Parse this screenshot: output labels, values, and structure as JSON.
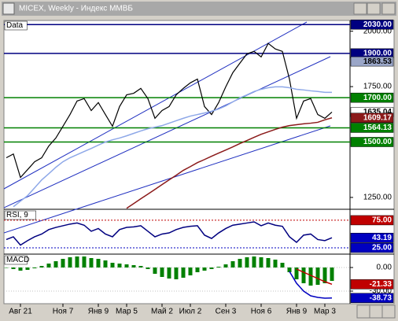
{
  "window": {
    "title": "MICEX, Weekly - Индекс ММВБ"
  },
  "chart_data": [
    {
      "type": "line",
      "title": "Data",
      "categories": [
        null,
        null,
        "Авг 21",
        null,
        null,
        null,
        null,
        null,
        "Ноя 7",
        null,
        null,
        null,
        null,
        "Янв 9",
        null,
        null,
        null,
        "Мар 5",
        null,
        null,
        null,
        null,
        "Май 2",
        null,
        null,
        null,
        "Июл 2",
        null,
        null,
        null,
        null,
        "Сен 3",
        null,
        null,
        null,
        null,
        "Ноя 6",
        null,
        null,
        null,
        null,
        "Янв 9",
        null,
        null,
        null,
        "Мар 3",
        null
      ],
      "series": [
        {
          "color": "#000000",
          "values": [
            1429,
            1446,
            1340,
            1375,
            1411,
            1429,
            1482,
            1518,
            1571,
            1624,
            1685,
            1696,
            1642,
            1678,
            1624,
            1571,
            1660,
            1713,
            1720,
            1742,
            1696,
            1607,
            1642,
            1660,
            1713,
            1742,
            1767,
            1784,
            1660,
            1624,
            1678,
            1749,
            1813,
            1856,
            1898,
            1909,
            1884,
            1945,
            1920,
            1909,
            1784,
            1607,
            1685,
            1696,
            1624,
            1607,
            1635.04
          ]
        },
        {
          "color": "#8ea8e8",
          "values": [
            null,
            1208,
            1233,
            1258,
            1293,
            1329,
            1357,
            1386,
            1411,
            1429,
            1443,
            1457,
            1471,
            1486,
            1500,
            1510,
            1518,
            1528,
            1539,
            1550,
            1560,
            1567,
            1574,
            1585,
            1596,
            1607,
            1617,
            1624,
            1631,
            1639,
            1649,
            1663,
            1681,
            1699,
            1713,
            1728,
            1738,
            1745,
            1749,
            1749,
            1745,
            1738,
            1735,
            1731,
            1728,
            1724,
            1724
          ]
        },
        {
          "color": "#8b1a1a",
          "values": [
            null,
            null,
            null,
            null,
            null,
            null,
            null,
            null,
            null,
            null,
            null,
            null,
            null,
            null,
            null,
            null,
            null,
            1201,
            1222,
            1244,
            1265,
            1286,
            1308,
            1329,
            1350,
            1372,
            1389,
            1407,
            1421,
            1436,
            1450,
            1464,
            1478,
            1493,
            1507,
            1521,
            1535,
            1546,
            1557,
            1567,
            1574,
            1578,
            1582,
            1585,
            1589,
            1600,
            1609.17
          ]
        }
      ],
      "ylim": [
        1200,
        2045
      ],
      "yticks": [
        {
          "value": 2000,
          "label": "2000.00"
        },
        {
          "value": 1750,
          "label": "1750.00"
        },
        {
          "value": 1250,
          "label": "1250.00"
        }
      ],
      "levels": [
        {
          "value": 2030,
          "label": "2030.00",
          "color": "#000080"
        },
        {
          "value": 1900,
          "label": "1900.00",
          "color": "#000080"
        },
        {
          "value": 1700,
          "label": "1700.00",
          "color": "#008000"
        },
        {
          "value": 1564.13,
          "label": "1564.13",
          "color": "#008000"
        },
        {
          "value": 1500,
          "label": "1500.00",
          "color": "#008000"
        }
      ],
      "markers": [
        {
          "value": 1863.53,
          "label": "1863.53",
          "color": "#9aa6c8"
        },
        {
          "value": 1635.04,
          "label": "1635.04",
          "color": "#ffffff"
        },
        {
          "value": 1609.17,
          "label": "1609.17",
          "color": "#8b1a1a"
        }
      ]
    },
    {
      "type": "line",
      "title": "RSI, 9",
      "series": [
        {
          "color": "#000080",
          "values": [
            40,
            45,
            30,
            38,
            45,
            50,
            58,
            62,
            65,
            68,
            70,
            66,
            55,
            60,
            50,
            45,
            58,
            62,
            63,
            65,
            55,
            45,
            50,
            52,
            58,
            62,
            64,
            65,
            48,
            42,
            52,
            60,
            66,
            68,
            70,
            72,
            65,
            70,
            66,
            64,
            45,
            35,
            48,
            50,
            40,
            38,
            43.19
          ]
        }
      ],
      "ylim": [
        15,
        92
      ],
      "levels": [
        {
          "value": 75,
          "label": "75.00",
          "color": "#c00000"
        },
        {
          "value": 25,
          "label": "25.00",
          "color": "#0000c0"
        }
      ],
      "markers": [
        {
          "value": 43.19,
          "label": "43.19",
          "color": "#0000c0"
        }
      ]
    },
    {
      "type": "macd",
      "title": "MACD",
      "histogram": {
        "color": "#008000",
        "values": [
          0,
          -2,
          -4,
          -3,
          -1,
          2,
          5,
          8,
          11,
          13,
          14,
          14,
          12,
          11,
          9,
          6,
          5,
          4,
          3,
          2,
          -2,
          -8,
          -12,
          -14,
          -15,
          -13,
          -10,
          -6,
          -4,
          -2,
          1,
          4,
          8,
          11,
          13,
          14,
          13,
          12,
          10,
          6,
          -6,
          -15,
          -20,
          -23,
          -22,
          -20,
          -17
        ]
      },
      "series": [
        {
          "color": "#c00000",
          "values": [
            null,
            null,
            null,
            null,
            null,
            null,
            null,
            null,
            null,
            null,
            null,
            null,
            null,
            null,
            null,
            null,
            null,
            null,
            null,
            null,
            null,
            null,
            null,
            null,
            null,
            null,
            null,
            null,
            null,
            null,
            null,
            null,
            null,
            null,
            null,
            null,
            null,
            null,
            null,
            null,
            null,
            -2,
            -6,
            -10,
            -14,
            -18,
            -21.33
          ]
        },
        {
          "color": "#0000c0",
          "values": [
            null,
            null,
            null,
            null,
            null,
            null,
            null,
            null,
            null,
            null,
            null,
            null,
            null,
            null,
            null,
            null,
            null,
            null,
            null,
            null,
            null,
            null,
            null,
            null,
            null,
            null,
            null,
            null,
            null,
            null,
            null,
            null,
            null,
            null,
            null,
            null,
            null,
            null,
            null,
            null,
            -5,
            -20,
            -30,
            -36,
            -38,
            -39,
            -38.73
          ]
        }
      ],
      "ylim": [
        -45,
        15
      ],
      "yticks": [
        {
          "value": 0,
          "label": "0.00"
        },
        {
          "value": -30,
          "label": "-30.00"
        }
      ],
      "markers": [
        {
          "value": -21.33,
          "label": "-21.33",
          "color": "#c00000"
        },
        {
          "value": -38.73,
          "label": "-38.73",
          "color": "#0000c0"
        }
      ]
    }
  ]
}
